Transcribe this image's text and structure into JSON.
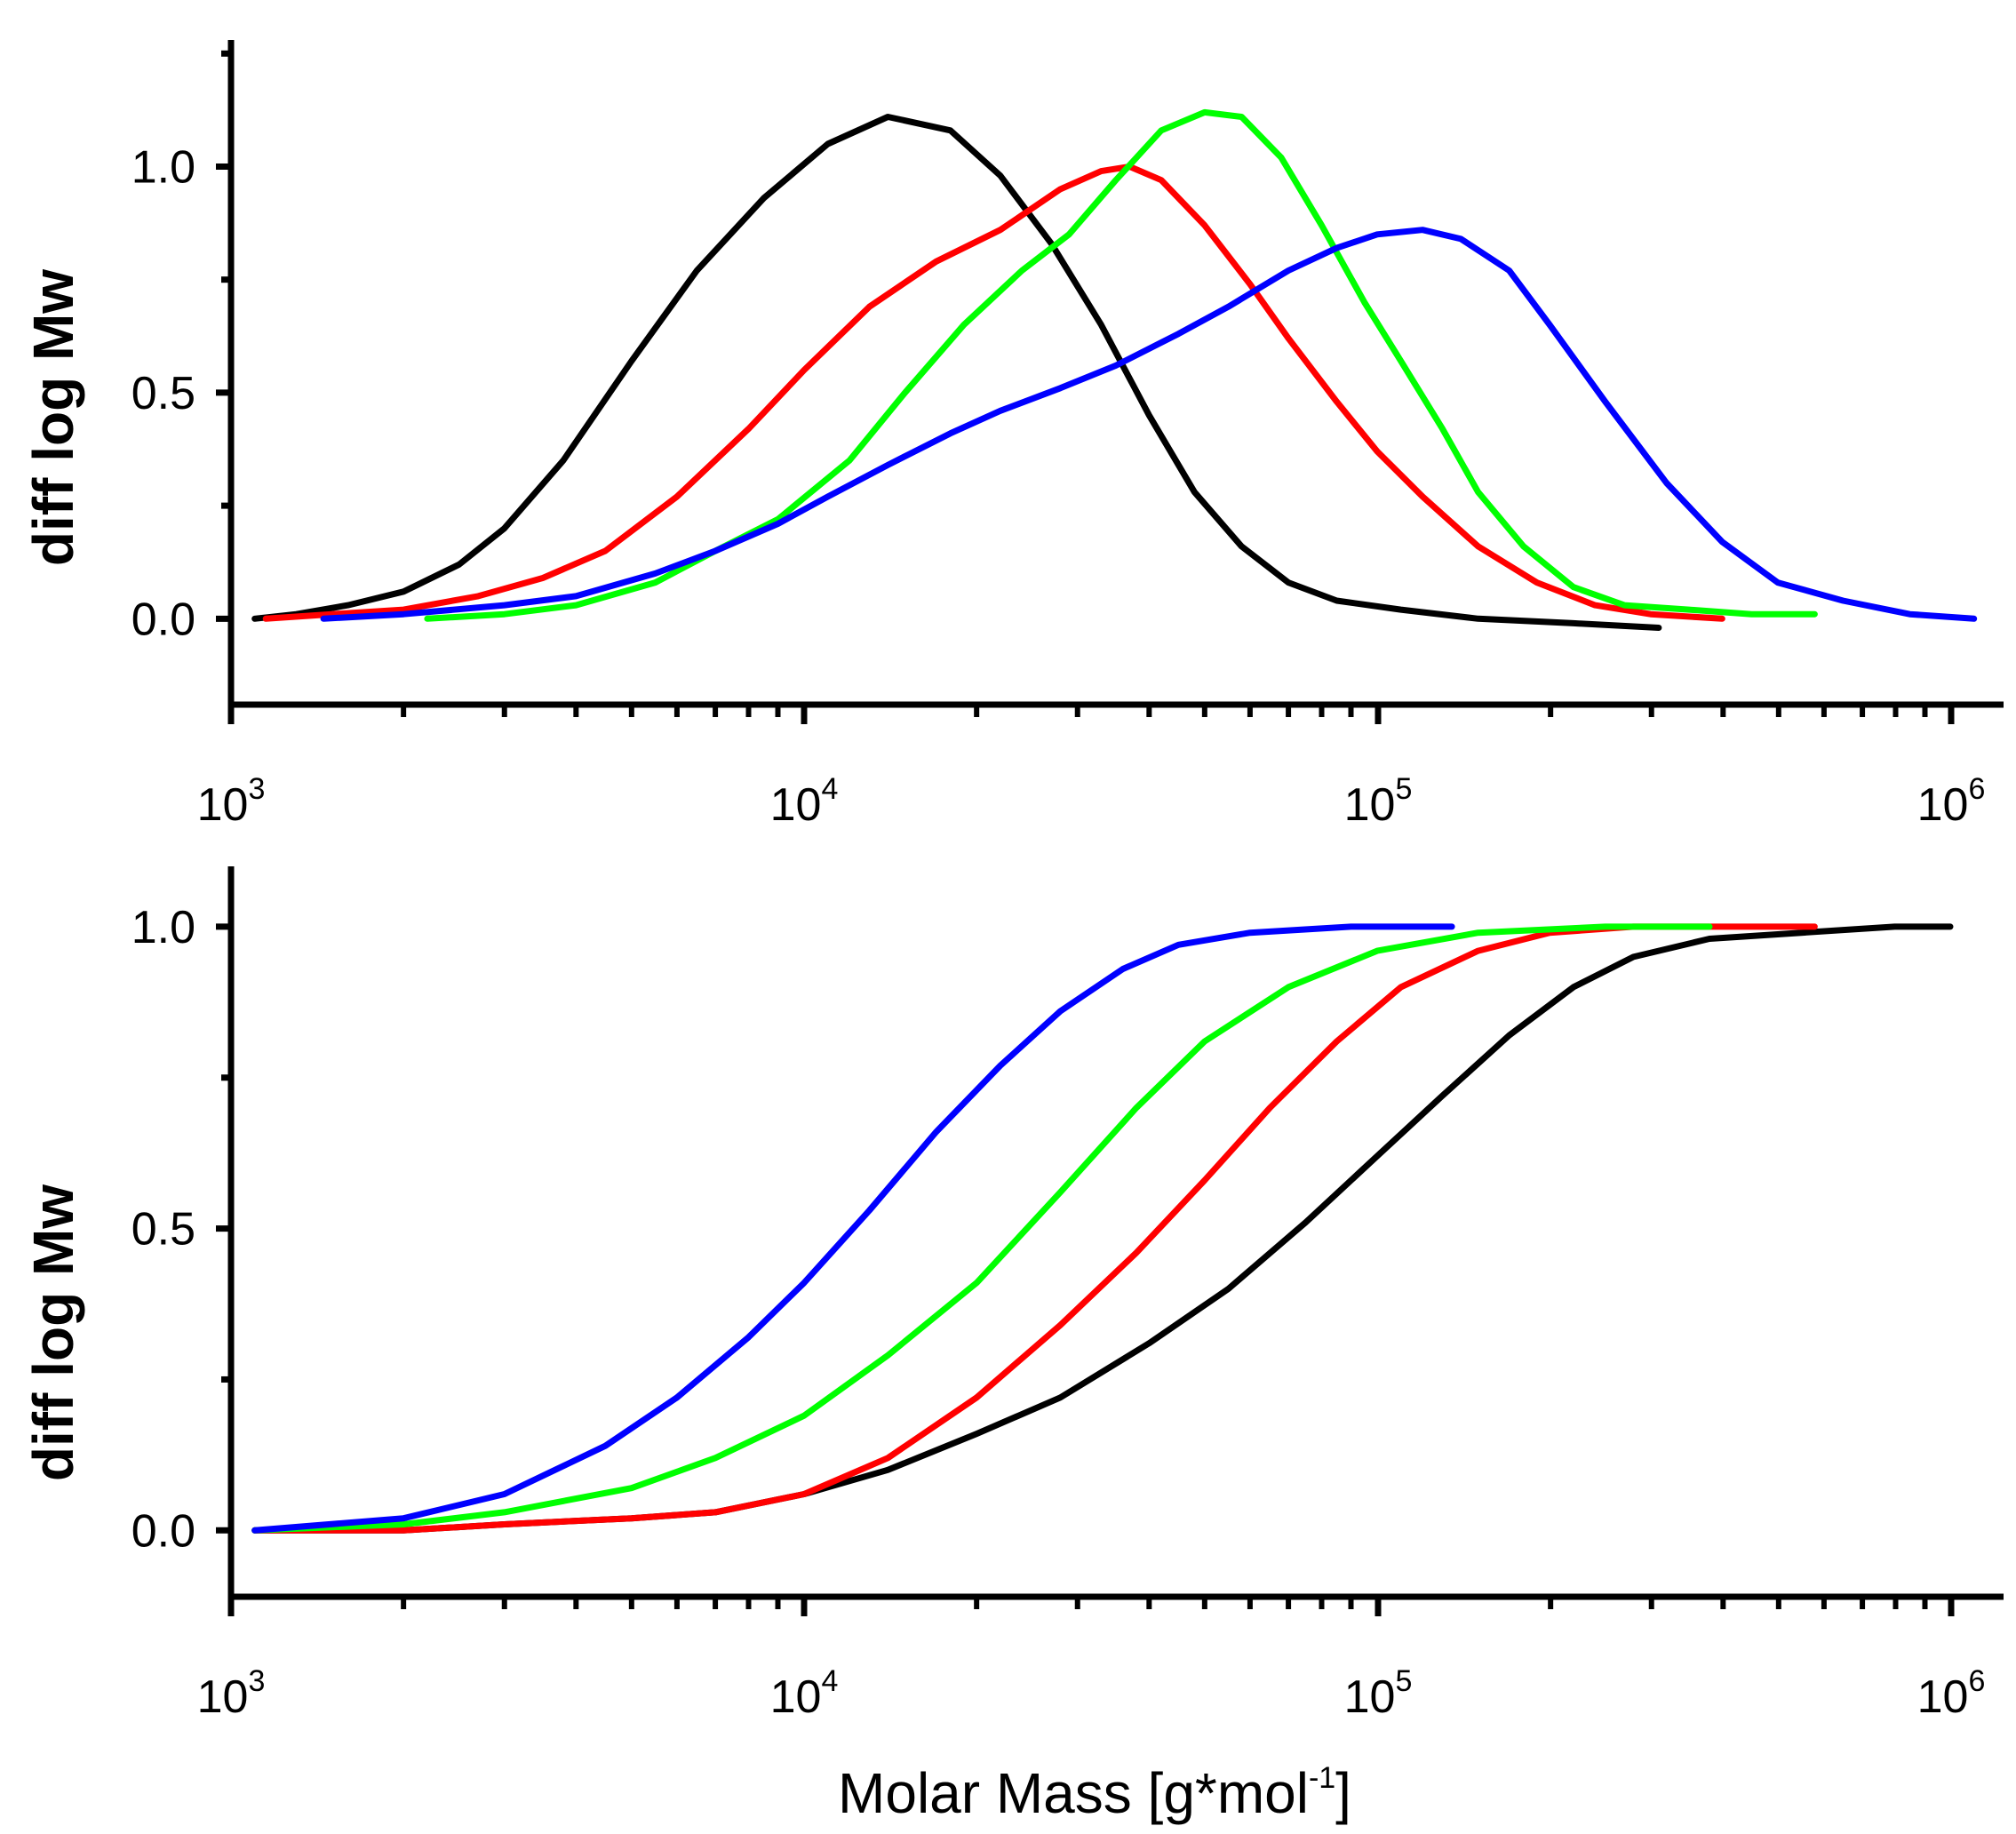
{
  "chart_data": [
    {
      "type": "line",
      "panel": "top",
      "title": "",
      "xlabel": "",
      "ylabel": "diff log Mw",
      "xscale": "log",
      "xlim": [
        1000,
        1600000
      ],
      "ylim": [
        -0.19,
        1.28
      ],
      "yticks": [
        "0.0",
        "0.5",
        "1.0"
      ],
      "xticks": [
        {
          "base": "10",
          "exp": "3"
        },
        {
          "base": "10",
          "exp": "4"
        },
        {
          "base": "10",
          "exp": "5"
        },
        {
          "base": "10",
          "exp": "6"
        }
      ],
      "series": [
        {
          "name": "black",
          "color": "#000000",
          "points": [
            [
              1100,
              0.0
            ],
            [
              1300,
              0.01
            ],
            [
              1600,
              0.03
            ],
            [
              2000,
              0.06
            ],
            [
              2500,
              0.12
            ],
            [
              3000,
              0.2
            ],
            [
              3800,
              0.35
            ],
            [
              5000,
              0.57
            ],
            [
              6500,
              0.77
            ],
            [
              8500,
              0.93
            ],
            [
              11000,
              1.05
            ],
            [
              14000,
              1.11
            ],
            [
              18000,
              1.08
            ],
            [
              22000,
              0.98
            ],
            [
              27000,
              0.83
            ],
            [
              33000,
              0.65
            ],
            [
              40000,
              0.45
            ],
            [
              48000,
              0.28
            ],
            [
              58000,
              0.16
            ],
            [
              70000,
              0.08
            ],
            [
              85000,
              0.04
            ],
            [
              110000,
              0.02
            ],
            [
              150000,
              0.0
            ],
            [
              220000,
              -0.01
            ],
            [
              310000,
              -0.02
            ]
          ]
        },
        {
          "name": "red",
          "color": "#ff0000",
          "points": [
            [
              1150,
              0.0
            ],
            [
              1500,
              0.01
            ],
            [
              2000,
              0.02
            ],
            [
              2700,
              0.05
            ],
            [
              3500,
              0.09
            ],
            [
              4500,
              0.15
            ],
            [
              6000,
              0.27
            ],
            [
              8000,
              0.42
            ],
            [
              10000,
              0.55
            ],
            [
              13000,
              0.69
            ],
            [
              17000,
              0.79
            ],
            [
              22000,
              0.86
            ],
            [
              28000,
              0.95
            ],
            [
              33000,
              0.99
            ],
            [
              37000,
              1.0
            ],
            [
              42000,
              0.97
            ],
            [
              50000,
              0.87
            ],
            [
              60000,
              0.74
            ],
            [
              70000,
              0.62
            ],
            [
              85000,
              0.48
            ],
            [
              100000,
              0.37
            ],
            [
              120000,
              0.27
            ],
            [
              150000,
              0.16
            ],
            [
              190000,
              0.08
            ],
            [
              240000,
              0.03
            ],
            [
              300000,
              0.01
            ],
            [
              400000,
              0.0
            ]
          ]
        },
        {
          "name": "green",
          "color": "#00ff00",
          "points": [
            [
              2200,
              0.0
            ],
            [
              3000,
              0.01
            ],
            [
              4000,
              0.03
            ],
            [
              5500,
              0.08
            ],
            [
              7000,
              0.15
            ],
            [
              9000,
              0.22
            ],
            [
              12000,
              0.35
            ],
            [
              15000,
              0.5
            ],
            [
              19000,
              0.65
            ],
            [
              24000,
              0.77
            ],
            [
              29000,
              0.85
            ],
            [
              35000,
              0.97
            ],
            [
              42000,
              1.08
            ],
            [
              50000,
              1.12
            ],
            [
              58000,
              1.11
            ],
            [
              68000,
              1.02
            ],
            [
              80000,
              0.87
            ],
            [
              95000,
              0.7
            ],
            [
              110000,
              0.57
            ],
            [
              130000,
              0.42
            ],
            [
              150000,
              0.28
            ],
            [
              180000,
              0.16
            ],
            [
              220000,
              0.07
            ],
            [
              270000,
              0.03
            ],
            [
              350000,
              0.02
            ],
            [
              450000,
              0.01
            ],
            [
              580000,
              0.01
            ]
          ]
        },
        {
          "name": "blue",
          "color": "#0000ff",
          "points": [
            [
              1450,
              0.0
            ],
            [
              2000,
              0.01
            ],
            [
              3000,
              0.03
            ],
            [
              4000,
              0.05
            ],
            [
              5500,
              0.1
            ],
            [
              7000,
              0.15
            ],
            [
              9000,
              0.21
            ],
            [
              11000,
              0.27
            ],
            [
              14000,
              0.34
            ],
            [
              18000,
              0.41
            ],
            [
              22000,
              0.46
            ],
            [
              28000,
              0.51
            ],
            [
              35000,
              0.56
            ],
            [
              45000,
              0.63
            ],
            [
              55000,
              0.69
            ],
            [
              70000,
              0.77
            ],
            [
              85000,
              0.82
            ],
            [
              100000,
              0.85
            ],
            [
              120000,
              0.86
            ],
            [
              140000,
              0.84
            ],
            [
              170000,
              0.77
            ],
            [
              200000,
              0.65
            ],
            [
              250000,
              0.48
            ],
            [
              320000,
              0.3
            ],
            [
              400000,
              0.17
            ],
            [
              500000,
              0.08
            ],
            [
              650000,
              0.04
            ],
            [
              850000,
              0.01
            ],
            [
              1100000,
              0.0
            ]
          ]
        }
      ]
    },
    {
      "type": "line",
      "panel": "bottom",
      "title": "",
      "xlabel": "Molar Mass [g*mol",
      "xlabel_sup": "-1",
      "xlabel_close": "]",
      "ylabel": "diff log Mw",
      "xscale": "log",
      "xlim": [
        1000,
        1600000
      ],
      "ylim": [
        -0.11,
        1.1
      ],
      "yticks": [
        "0.0",
        "0.5",
        "1.0"
      ],
      "xticks": [
        {
          "base": "10",
          "exp": "3"
        },
        {
          "base": "10",
          "exp": "4"
        },
        {
          "base": "10",
          "exp": "5"
        },
        {
          "base": "10",
          "exp": "6"
        }
      ],
      "series": [
        {
          "name": "black",
          "color": "#000000",
          "points": [
            [
              1100,
              0.0
            ],
            [
              2000,
              0.0
            ],
            [
              3000,
              0.01
            ],
            [
              5000,
              0.02
            ],
            [
              7000,
              0.03
            ],
            [
              10000,
              0.06
            ],
            [
              14000,
              0.1
            ],
            [
              20000,
              0.16
            ],
            [
              28000,
              0.22
            ],
            [
              40000,
              0.31
            ],
            [
              55000,
              0.4
            ],
            [
              75000,
              0.51
            ],
            [
              100000,
              0.62
            ],
            [
              130000,
              0.72
            ],
            [
              170000,
              0.82
            ],
            [
              220000,
              0.9
            ],
            [
              280000,
              0.95
            ],
            [
              380000,
              0.98
            ],
            [
              550000,
              0.99
            ],
            [
              800000,
              1.0
            ],
            [
              1000000,
              1.0
            ]
          ]
        },
        {
          "name": "red",
          "color": "#ff0000",
          "points": [
            [
              1100,
              0.0
            ],
            [
              2000,
              0.0
            ],
            [
              3000,
              0.01
            ],
            [
              5000,
              0.02
            ],
            [
              7000,
              0.03
            ],
            [
              10000,
              0.06
            ],
            [
              14000,
              0.12
            ],
            [
              20000,
              0.22
            ],
            [
              28000,
              0.34
            ],
            [
              38000,
              0.46
            ],
            [
              50000,
              0.58
            ],
            [
              65000,
              0.7
            ],
            [
              85000,
              0.81
            ],
            [
              110000,
              0.9
            ],
            [
              150000,
              0.96
            ],
            [
              200000,
              0.99
            ],
            [
              280000,
              1.0
            ],
            [
              400000,
              1.0
            ],
            [
              580000,
              1.0
            ]
          ]
        },
        {
          "name": "green",
          "color": "#00ff00",
          "points": [
            [
              1100,
              0.0
            ],
            [
              2000,
              0.01
            ],
            [
              3000,
              0.03
            ],
            [
              5000,
              0.07
            ],
            [
              7000,
              0.12
            ],
            [
              10000,
              0.19
            ],
            [
              14000,
              0.29
            ],
            [
              20000,
              0.41
            ],
            [
              28000,
              0.56
            ],
            [
              38000,
              0.7
            ],
            [
              50000,
              0.81
            ],
            [
              70000,
              0.9
            ],
            [
              100000,
              0.96
            ],
            [
              150000,
              0.99
            ],
            [
              250000,
              1.0
            ],
            [
              380000,
              1.0
            ]
          ]
        },
        {
          "name": "blue",
          "color": "#0000ff",
          "points": [
            [
              1100,
              0.0
            ],
            [
              2000,
              0.02
            ],
            [
              3000,
              0.06
            ],
            [
              4500,
              0.14
            ],
            [
              6000,
              0.22
            ],
            [
              8000,
              0.32
            ],
            [
              10000,
              0.41
            ],
            [
              13000,
              0.53
            ],
            [
              17000,
              0.66
            ],
            [
              22000,
              0.77
            ],
            [
              28000,
              0.86
            ],
            [
              36000,
              0.93
            ],
            [
              45000,
              0.97
            ],
            [
              60000,
              0.99
            ],
            [
              90000,
              1.0
            ],
            [
              135000,
              1.0
            ]
          ]
        }
      ]
    }
  ]
}
